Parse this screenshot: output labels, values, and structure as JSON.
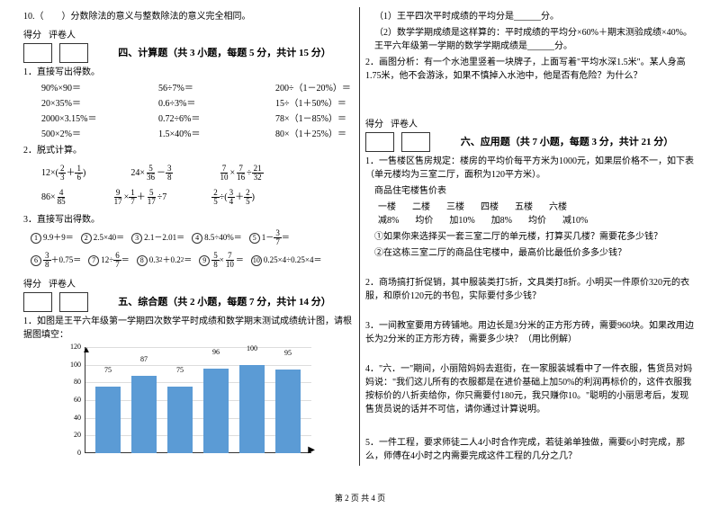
{
  "left": {
    "q10": "10.（　　）分数除法的意义与整数除法的意义完全相同。",
    "score_label1": "得分",
    "score_label2": "评卷人",
    "sec4": {
      "title": "四、计算题（共 3 小题，每题 5 分，共计 15 分）",
      "p1": "1．直接写出得数。",
      "rows": [
        [
          "90%×90＝",
          "56÷7%＝",
          "200÷（1－20%）＝"
        ],
        [
          "20×35%＝",
          "0.6÷3%＝",
          "15÷（1＋50%）＝"
        ],
        [
          "2000×3.15%＝",
          "0.72÷6%＝",
          "78×（1－85%）＝"
        ],
        [
          "500×2%＝",
          "1.5×40%＝",
          "80×（1＋25%）＝"
        ]
      ],
      "p2": "2．脱式计算。",
      "p3": "3．直接写出得数。"
    },
    "sec5": {
      "title": "五、综合题（共 2 小题，每题 7 分，共计 14 分）",
      "p1": "1．如图是王平六年级第一学期四次数学平时成绩和数学期末测试成绩统计图，请根据图填空：",
      "chart": {
        "bars": [
          75,
          87,
          75,
          96,
          100,
          95
        ],
        "ymax": 120,
        "ticks": [
          0,
          20,
          40,
          60,
          80,
          100,
          120
        ],
        "bar_color": "#5b9bd5"
      }
    }
  },
  "right": {
    "r1": "（1）王平四次平时成绩的平均分是______分。",
    "r2": "（2）数学学期成绩是这样算的：平时成绩的平均分×60%＋期末测验成绩×40%。王平六年级第一学期的数学学期成绩是______分。",
    "r3": "2．画图分析：有一个水池里竖着一块牌子，上面写着\"平均水深1.5米\"。某人身高1.75米，他不会游泳，如果不慎掉入水池中，他是否有危险？为什么？",
    "sec6": {
      "title": "六、应用题（共 7 小题，每题 3 分，共计 21 分）",
      "p1": "1．一售楼区售房规定：楼房的平均价每平方米为1000元，如果层价格不一，如下表（单元楼均为三室二厅，面积为120平方米）。",
      "t1": "商品住宅楼售价表",
      "th": [
        "一楼",
        "二楼",
        "三楼",
        "四楼",
        "五楼",
        "六楼"
      ],
      "tr": [
        "减8%",
        "均价",
        "加10%",
        "加8%",
        "均价",
        "减10%"
      ],
      "q1a": "①如果你来选择买一套三室二厅的单元楼，打算买几楼？需要花多少钱？",
      "q1b": "②在这栋三室二厅的商品住宅楼中，最高价比最低价多多少钱？",
      "p2": "2．商场搞打折促销，其中服装类打5折，文具类打8折。小明买一件原价320元的衣服，和原价120元的书包，实际要付多少钱？",
      "p3": "3．一间教室要用方砖铺地。用边长是3分米的正方形方砖，需要960块。如果改用边长为2分米的正方形方砖，需要多少块？（用比例解）",
      "p4": "4．\"六．一\"期间，小丽陪妈妈去逛街，在一家服装城看中了一件衣服，售货员对妈妈说：\"我们这儿所有的衣服都是在进价基础上加50%的利润再标价的，这件衣服我按标价的八折卖给你，你只需要付180元，我只赚你10。\"聪明的小丽思考后，发现售货员说的话并不可信，请你通过计算说明。",
      "p5": "5．一件工程，要求师徒二人4小时合作完成，若徒弟单独做，需要6小时完成，那么，师傅在4小时之内需要完成这件工程的几分之几？"
    }
  },
  "footer": "第 2 页 共 4 页"
}
